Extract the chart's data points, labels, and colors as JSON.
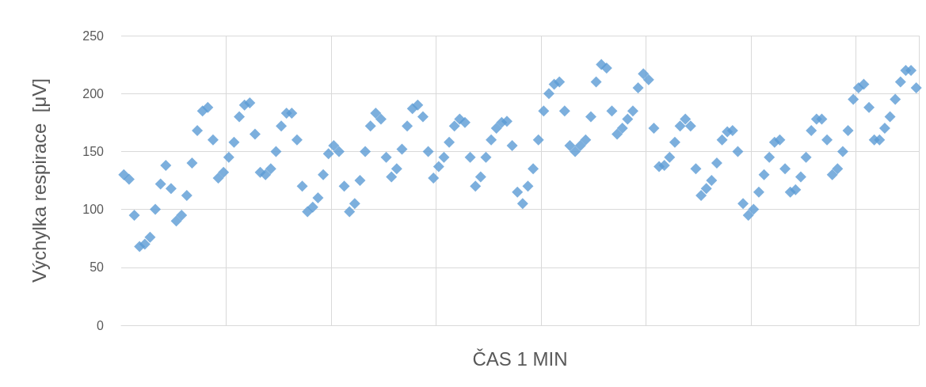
{
  "chart_data": {
    "type": "scatter",
    "xlabel": "ČAS 1 MIN",
    "ylabel": "Výchylka respirace  [μV]",
    "categories": [
      null,
      null,
      null,
      null,
      null,
      null,
      null,
      null,
      null,
      null,
      null,
      null,
      null,
      null,
      null,
      null,
      null,
      null,
      null,
      null,
      null,
      null,
      null,
      null,
      null,
      null,
      null,
      null,
      null,
      null,
      null,
      null,
      null,
      null,
      null,
      null,
      null,
      null,
      null,
      null,
      null,
      null,
      null,
      null,
      null,
      null,
      null,
      null,
      null,
      null,
      null,
      null,
      null,
      null,
      null,
      null,
      null,
      null,
      null,
      null,
      null,
      null,
      null,
      null,
      null,
      null,
      null,
      null,
      null,
      null,
      null,
      null,
      null,
      null,
      null,
      null,
      null,
      null,
      null,
      null,
      null,
      null,
      null,
      null,
      null,
      null,
      null,
      null,
      null,
      null,
      null,
      null,
      null,
      null,
      null,
      null,
      null,
      null,
      null,
      null,
      null,
      null,
      null,
      null,
      null,
      null,
      null,
      null,
      null,
      null,
      null,
      null,
      null,
      null,
      null,
      null,
      null,
      null,
      null,
      null,
      null,
      null,
      null,
      null,
      null,
      null,
      null,
      null,
      null,
      null,
      null,
      null,
      null,
      null,
      null,
      null,
      null,
      null,
      null,
      null,
      null,
      null,
      null,
      null,
      null,
      null,
      null,
      null,
      null,
      null,
      null,
      null
    ],
    "series": [
      {
        "color": "#5b9bd5",
        "values": [
          130,
          126,
          95,
          68,
          70,
          76,
          100,
          122,
          138,
          118,
          90,
          95,
          112,
          140,
          168,
          185,
          188,
          160,
          127,
          132,
          145,
          158,
          180,
          190,
          192,
          165,
          132,
          130,
          135,
          150,
          172,
          183,
          183,
          160,
          120,
          98,
          102,
          110,
          130,
          148,
          155,
          150,
          120,
          98,
          105,
          125,
          150,
          172,
          183,
          178,
          145,
          128,
          135,
          152,
          172,
          187,
          190,
          180,
          150,
          127,
          137,
          145,
          158,
          172,
          178,
          175,
          145,
          120,
          128,
          145,
          160,
          170,
          175,
          176,
          155,
          115,
          105,
          120,
          135,
          160,
          185,
          200,
          208,
          210,
          185,
          155,
          150,
          155,
          160,
          180,
          210,
          225,
          222,
          185,
          165,
          170,
          178,
          185,
          205,
          217,
          212,
          170,
          137,
          138,
          145,
          158,
          172,
          178,
          172,
          135,
          112,
          118,
          125,
          140,
          160,
          167,
          168,
          150,
          105,
          95,
          100,
          115,
          130,
          145,
          158,
          160,
          135,
          115,
          117,
          128,
          145,
          168,
          178,
          178,
          160,
          130,
          135,
          150,
          168,
          195,
          205,
          208,
          188,
          160,
          160,
          170,
          180,
          195,
          210,
          220,
          220,
          205
        ]
      }
    ],
    "ylim": [
      0,
      250
    ],
    "yticks": [
      0,
      50,
      100,
      150,
      200,
      250
    ],
    "grid": true,
    "marker": "diamond"
  }
}
